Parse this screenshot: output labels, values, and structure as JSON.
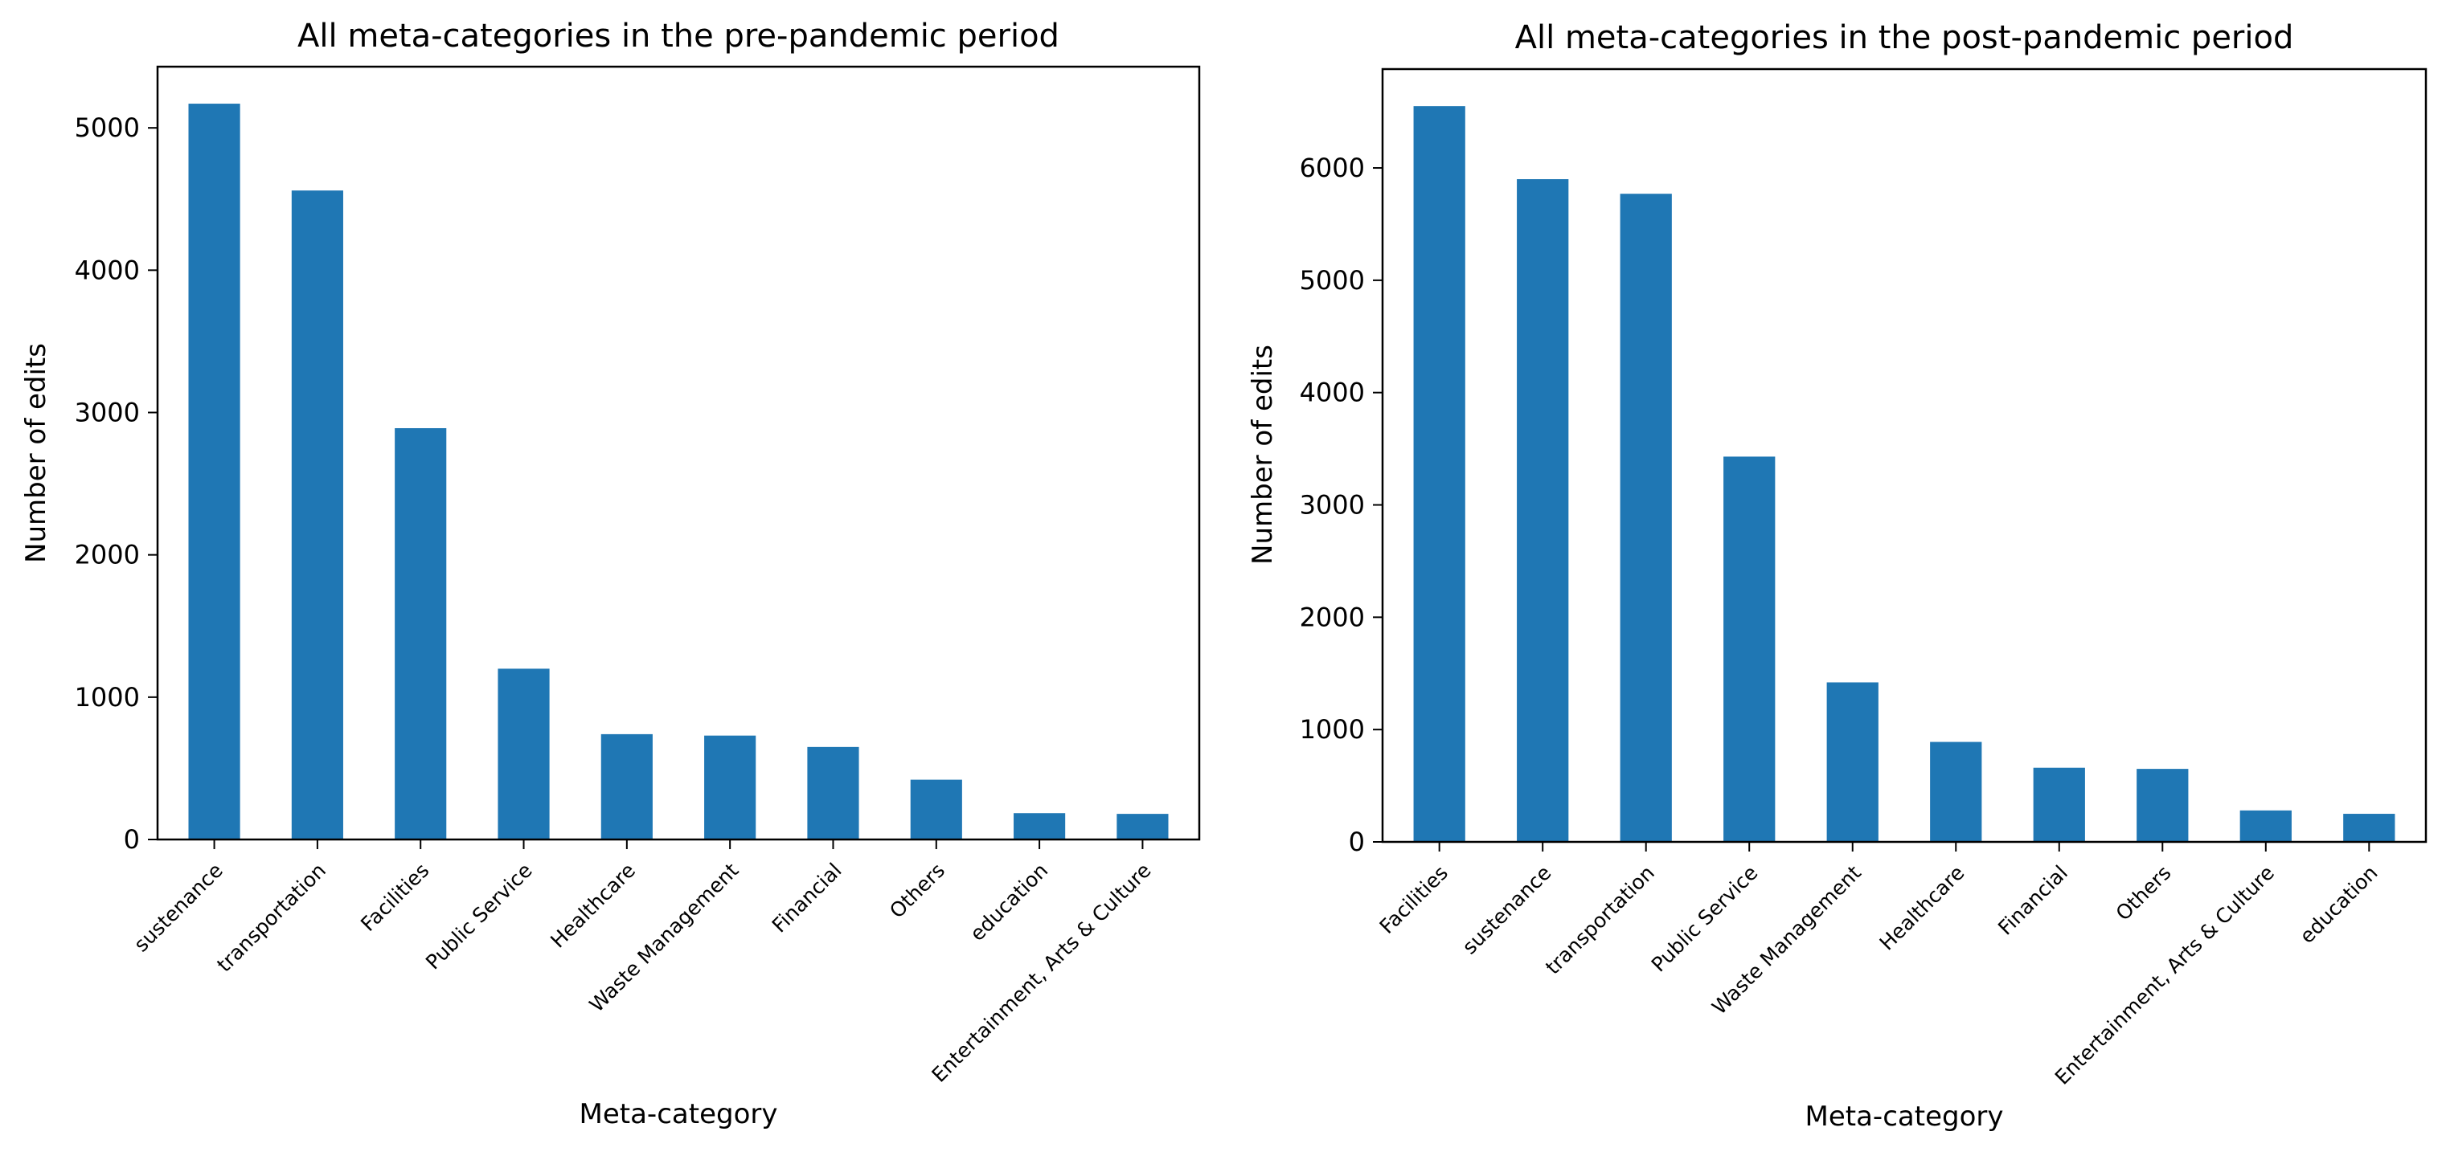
{
  "chart_data": [
    {
      "type": "bar",
      "title": "All meta-categories in the pre-pandemic period",
      "xlabel": "Meta-category",
      "ylabel": "Number of edits",
      "ylim": [
        0,
        5430
      ],
      "yticks": [
        0,
        1000,
        2000,
        3000,
        4000,
        5000
      ],
      "grid": false,
      "color": "#1f77b4",
      "categories": [
        "sustenance",
        "transportation",
        "Facilities",
        "Public Service",
        "Healthcare",
        "Waste Management",
        "Financial",
        "Others",
        "education",
        "Entertainment, Arts & Culture"
      ],
      "values": [
        5170,
        4560,
        2890,
        1200,
        740,
        730,
        650,
        420,
        185,
        180
      ]
    },
    {
      "type": "bar",
      "title": "All meta-categories in the post-pandemic period",
      "xlabel": "Meta-category",
      "ylabel": "Number of edits",
      "ylim": [
        0,
        6880
      ],
      "yticks": [
        0,
        1000,
        2000,
        3000,
        4000,
        5000,
        6000
      ],
      "grid": false,
      "color": "#1f77b4",
      "categories": [
        "Facilities",
        "sustenance",
        "transportation",
        "Public Service",
        "Waste Management",
        "Healthcare",
        "Financial",
        "Others",
        "Entertainment, Arts & Culture",
        "education"
      ],
      "values": [
        6550,
        5900,
        5770,
        3430,
        1420,
        890,
        660,
        650,
        280,
        250
      ]
    }
  ]
}
